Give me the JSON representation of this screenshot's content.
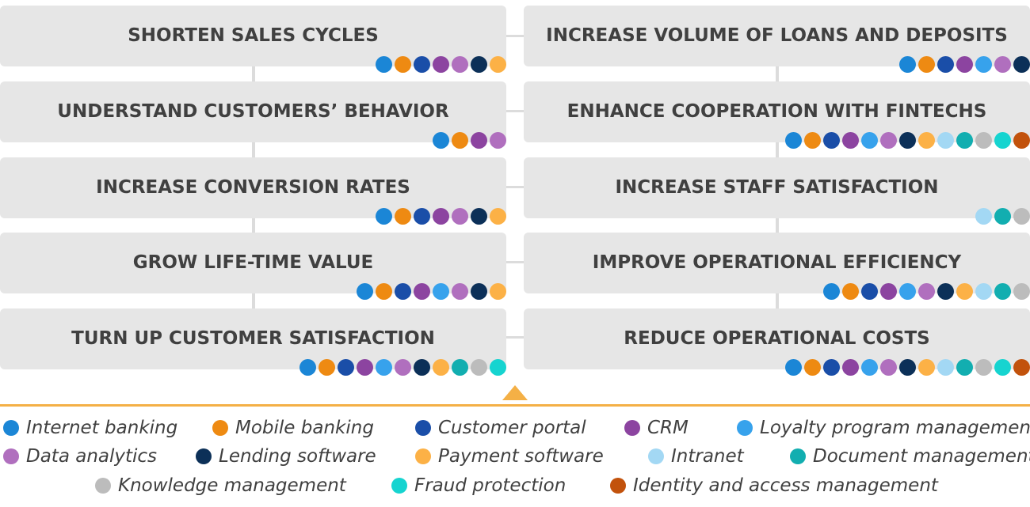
{
  "colors": {
    "internet_banking": "#1b86d6",
    "mobile_banking": "#ee8a12",
    "customer_portal": "#1a4ea8",
    "crm": "#8c44a0",
    "loyalty": "#37a2ec",
    "data_analytics": "#b06fbe",
    "lending": "#0c3058",
    "payment": "#fcb146",
    "intranet": "#a3d8f4",
    "document": "#12aeb0",
    "knowledge": "#bcbcbc",
    "fraud": "#16d4d0",
    "identity": "#c2520c"
  },
  "goals_left": [
    {
      "title": "SHORTEN SALES CYCLES",
      "tools": [
        "internet_banking",
        "mobile_banking",
        "customer_portal",
        "crm",
        "data_analytics",
        "lending",
        "payment"
      ]
    },
    {
      "title": "UNDERSTAND CUSTOMERS’ BEHAVIOR",
      "tools": [
        "internet_banking",
        "mobile_banking",
        "crm",
        "data_analytics"
      ]
    },
    {
      "title": "INCREASE CONVERSION RATES",
      "tools": [
        "internet_banking",
        "mobile_banking",
        "customer_portal",
        "crm",
        "data_analytics",
        "lending",
        "payment"
      ]
    },
    {
      "title": "GROW LIFE-TIME VALUE",
      "tools": [
        "internet_banking",
        "mobile_banking",
        "customer_portal",
        "crm",
        "loyalty",
        "data_analytics",
        "lending",
        "payment"
      ]
    },
    {
      "title": "TURN UP CUSTOMER SATISFACTION",
      "tools": [
        "internet_banking",
        "mobile_banking",
        "customer_portal",
        "crm",
        "loyalty",
        "data_analytics",
        "lending",
        "payment",
        "document",
        "knowledge",
        "fraud"
      ]
    }
  ],
  "goals_right": [
    {
      "title": "INCREASE VOLUME OF LOANS AND DEPOSITS",
      "tools": [
        "internet_banking",
        "mobile_banking",
        "customer_portal",
        "crm",
        "loyalty",
        "data_analytics",
        "lending"
      ]
    },
    {
      "title": "ENHANCE COOPERATION WITH FINTECHS",
      "tools": [
        "internet_banking",
        "mobile_banking",
        "customer_portal",
        "crm",
        "loyalty",
        "data_analytics",
        "lending",
        "payment",
        "intranet",
        "document",
        "knowledge",
        "fraud",
        "identity"
      ]
    },
    {
      "title": "INCREASE STAFF SATISFACTION",
      "tools": [
        "intranet",
        "document",
        "knowledge"
      ]
    },
    {
      "title": "IMPROVE OPERATIONAL EFFICIENCY",
      "tools": [
        "internet_banking",
        "mobile_banking",
        "customer_portal",
        "crm",
        "loyalty",
        "data_analytics",
        "lending",
        "payment",
        "intranet",
        "document",
        "knowledge"
      ]
    },
    {
      "title": "REDUCE OPERATIONAL COSTS",
      "tools": [
        "internet_banking",
        "mobile_banking",
        "customer_portal",
        "crm",
        "loyalty",
        "data_analytics",
        "lending",
        "payment",
        "intranet",
        "document",
        "knowledge",
        "fraud",
        "identity"
      ]
    }
  ],
  "legend": [
    [
      {
        "key": "internet_banking",
        "label": "Internet banking"
      },
      {
        "key": "mobile_banking",
        "label": "Mobile banking"
      },
      {
        "key": "customer_portal",
        "label": "Customer portal"
      },
      {
        "key": "crm",
        "label": "CRM"
      },
      {
        "key": "loyalty",
        "label": "Loyalty program management"
      }
    ],
    [
      {
        "key": "data_analytics",
        "label": "Data analytics"
      },
      {
        "key": "lending",
        "label": "Lending software"
      },
      {
        "key": "payment",
        "label": "Payment software"
      },
      {
        "key": "intranet",
        "label": "Intranet"
      },
      {
        "key": "document",
        "label": "Document management"
      }
    ],
    [
      {
        "key": "knowledge",
        "label": "Knowledge management"
      },
      {
        "key": "fraud",
        "label": "Fraud protection"
      },
      {
        "key": "identity",
        "label": "Identity and access management"
      }
    ]
  ]
}
